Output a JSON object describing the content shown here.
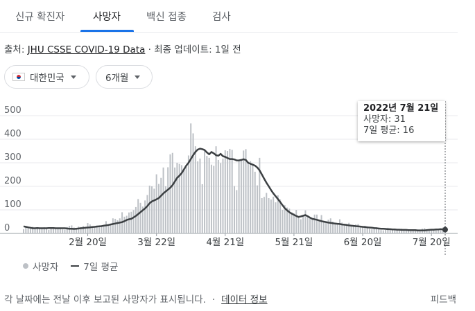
{
  "tabs": [
    {
      "label": "신규 확진자"
    },
    {
      "label": "사망자"
    },
    {
      "label": "백신 접종"
    },
    {
      "label": "검사"
    }
  ],
  "active_tab": "사망자",
  "source": {
    "prefix": "출처: ",
    "link": "JHU CSSE COVID-19 Data",
    "suffix": " · 최종 업데이트: 1일 전"
  },
  "filters": {
    "country": "대한민국",
    "country_flag_icon": "korea-flag-icon",
    "period": "6개월"
  },
  "tooltip": {
    "date": "2022년 7월 21일",
    "deaths": "사망자: 31",
    "avg": "7일 평균: 16"
  },
  "legend": {
    "bars": "사망자",
    "line": "7일 평균"
  },
  "footer": {
    "note": "각 날짜에는 전날 이후 보고된 사망자가 표시됩니다.",
    "link": "데이터 정보",
    "feedback": "피드백"
  },
  "colors": {
    "accent": "#1a73e8",
    "bar": "#bdc1c6",
    "line": "#3c4043",
    "grid": "#e8eaed"
  },
  "chart_data": {
    "type": "bar",
    "ytick_labels": [
      "0",
      "100",
      "200",
      "300",
      "400",
      "500"
    ],
    "ylim": [
      0,
      500
    ],
    "xtick_labels": [
      "2월 20일",
      "3월 22일",
      "4월 21일",
      "5월 21일",
      "6월 20일",
      "7월 20일"
    ],
    "xtick_day_index": [
      28,
      58,
      88,
      118,
      148,
      178
    ],
    "start_date": "2022-01-23",
    "end_date": "2022-07-21",
    "series": [
      {
        "name": "사망자",
        "type": "bar",
        "values": [
          18,
          25,
          22,
          20,
          28,
          19,
          22,
          21,
          20,
          26,
          24,
          15,
          23,
          24,
          22,
          22,
          21,
          17,
          16,
          27,
          32,
          34,
          25,
          21,
          29,
          27,
          32,
          22,
          44,
          38,
          29,
          30,
          34,
          30,
          31,
          34,
          52,
          39,
          42,
          64,
          62,
          56,
          64,
          90,
          71,
          75,
          89,
          92,
          99,
          112,
          146,
          130,
          114,
          140,
          163,
          203,
          200,
          190,
          251,
          210,
          236,
          280,
          200,
          281,
          336,
          342,
          280,
          300,
          295,
          290,
          271,
          282,
          331,
          467,
          425,
          370,
          306,
          318,
          209,
          349,
          329,
          321,
          292,
          287,
          370,
          312,
          299,
          318,
          353,
          350,
          359,
          355,
          201,
          184,
          306,
          312,
          352,
          358,
          305,
          307,
          291,
          262,
          204,
          321,
          150,
          155,
          172,
          150,
          144,
          156,
          132,
          162,
          144,
          100,
          120,
          110,
          105,
          90,
          85,
          100,
          71,
          60,
          72,
          98,
          70,
          67,
          64,
          80,
          80,
          55,
          78,
          48,
          52,
          58,
          64,
          50,
          44,
          42,
          60,
          46,
          38,
          40,
          45,
          32,
          30,
          38,
          40,
          28,
          26,
          32,
          30,
          20,
          18,
          24,
          26,
          20,
          14,
          13,
          15,
          24,
          20,
          18,
          15,
          16,
          12,
          20,
          18,
          15,
          12,
          10,
          15,
          14,
          11,
          10,
          20,
          22,
          18,
          18,
          15,
          14,
          16,
          17,
          13,
          25,
          31
        ]
      },
      {
        "name": "7일 평균",
        "type": "line",
        "values": [
          30,
          28,
          26,
          24,
          22,
          22,
          23,
          22,
          22,
          22,
          22,
          23,
          23,
          23,
          22,
          22,
          22,
          22,
          22,
          21,
          20,
          20,
          19,
          20,
          21,
          22,
          23,
          24,
          25,
          26,
          27,
          28,
          29,
          30,
          31,
          33,
          34,
          36,
          38,
          40,
          42,
          44,
          46,
          48,
          52,
          57,
          60,
          62,
          68,
          74,
          82,
          90,
          98,
          106,
          116,
          128,
          136,
          140,
          145,
          150,
          160,
          170,
          178,
          186,
          194,
          205,
          220,
          236,
          245,
          256,
          272,
          288,
          300,
          316,
          332,
          346,
          356,
          360,
          358,
          354,
          344,
          336,
          346,
          340,
          332,
          330,
          338,
          328,
          325,
          320,
          316,
          316,
          314,
          310,
          310,
          312,
          315,
          312,
          300,
          296,
          292,
          288,
          280,
          268,
          250,
          232,
          215,
          200,
          184,
          170,
          158,
          146,
          133,
          120,
          107,
          98,
          90,
          84,
          79,
          74,
          70,
          72,
          75,
          78,
          73,
          67,
          62,
          60,
          58,
          55,
          52,
          50,
          48,
          46,
          45,
          43,
          42,
          41,
          40,
          38,
          37,
          36,
          34,
          33,
          32,
          31,
          30,
          29,
          28,
          27,
          26,
          25,
          24,
          23,
          22,
          21,
          20,
          20,
          19,
          18,
          18,
          17,
          17,
          16,
          16,
          15,
          15,
          15,
          14,
          14,
          14,
          14,
          13,
          13,
          13,
          13,
          14,
          15,
          16,
          16,
          17,
          17,
          18,
          17,
          16
        ]
      }
    ]
  }
}
